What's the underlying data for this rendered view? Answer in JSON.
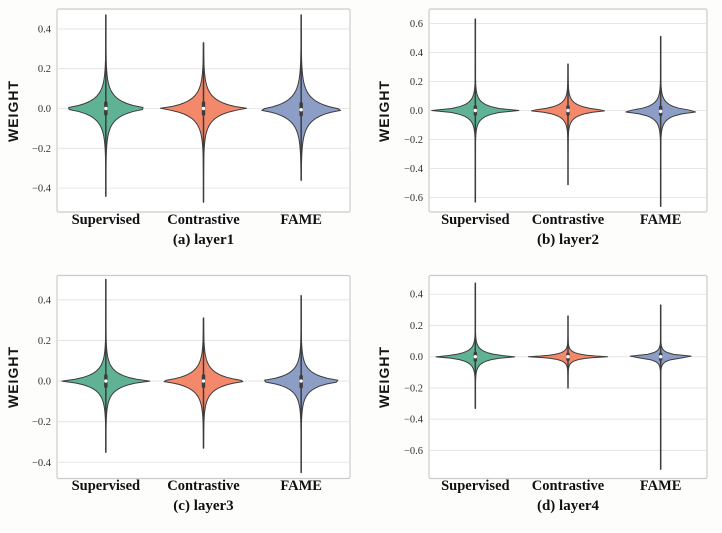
{
  "figure": {
    "ylabel": "WEIGHT",
    "categories": [
      "Supervised",
      "Contrastive",
      "FAME"
    ]
  },
  "style": {
    "background": "#fdfdfc",
    "panel_background": "#ffffff",
    "violin_colors": {
      "supervised": "#60b295",
      "contrastive": "#f4886a",
      "fame": "#8c9dc6"
    },
    "outline_color": "#3c3c3c",
    "grid_color": "#e7e7e7",
    "border_color": "#cccccc",
    "tick_text_color": "#303030",
    "label_text_color": "#101010",
    "median_dot_color": "#fbfbfb"
  },
  "chart_data": [
    {
      "type": "violin",
      "caption": "(a) layer1",
      "ylabel": "WEIGHT",
      "categories": [
        "Supervised",
        "Contrastive",
        "FAME"
      ],
      "ylim": [
        -0.52,
        0.5
      ],
      "yticks": [
        0.4,
        0.2,
        0.0,
        -0.2,
        -0.4
      ],
      "ytick_labels": [
        "0.4",
        "0.2",
        "0.0",
        "−0.2",
        "−0.4"
      ],
      "grid": true,
      "legend": "none",
      "series": [
        {
          "name": "Supervised",
          "color": "#60b295",
          "min": -0.44,
          "max": 0.47,
          "median": 0.0,
          "q1": -0.028,
          "q3": 0.028,
          "bandwidth": 0.034
        },
        {
          "name": "Contrastive",
          "color": "#f4886a",
          "min": -0.47,
          "max": 0.33,
          "median": 0.0,
          "q1": -0.028,
          "q3": 0.028,
          "bandwidth": 0.034
        },
        {
          "name": "FAME",
          "color": "#8c9dc6",
          "min": -0.36,
          "max": 0.47,
          "median": -0.006,
          "q1": -0.032,
          "q3": 0.024,
          "bandwidth": 0.037
        }
      ]
    },
    {
      "type": "violin",
      "caption": "(b) layer2",
      "ylabel": "WEIGHT",
      "categories": [
        "Supervised",
        "Contrastive",
        "FAME"
      ],
      "ylim": [
        -0.7,
        0.7
      ],
      "yticks": [
        0.6,
        0.4,
        0.2,
        0.0,
        -0.2,
        -0.4,
        -0.6
      ],
      "ytick_labels": [
        "0.6",
        "0.4",
        "0.2",
        "0.0",
        "−0.2",
        "−0.4",
        "−0.6"
      ],
      "grid": true,
      "legend": "none",
      "series": [
        {
          "name": "Supervised",
          "color": "#60b295",
          "min": -0.63,
          "max": 0.63,
          "median": 0.0,
          "q1": -0.025,
          "q3": 0.025,
          "bandwidth": 0.026
        },
        {
          "name": "Contrastive",
          "color": "#f4886a",
          "min": -0.51,
          "max": 0.32,
          "median": 0.0,
          "q1": -0.025,
          "q3": 0.025,
          "bandwidth": 0.024
        },
        {
          "name": "FAME",
          "color": "#8c9dc6",
          "min": -0.66,
          "max": 0.51,
          "median": -0.006,
          "q1": -0.028,
          "q3": 0.022,
          "bandwidth": 0.026
        }
      ]
    },
    {
      "type": "violin",
      "caption": "(c) layer3",
      "ylabel": "WEIGHT",
      "categories": [
        "Supervised",
        "Contrastive",
        "FAME"
      ],
      "ylim": [
        -0.48,
        0.52
      ],
      "yticks": [
        0.4,
        0.2,
        0.0,
        -0.2,
        -0.4
      ],
      "ytick_labels": [
        "0.4",
        "0.2",
        "0.0",
        "−0.2",
        "−0.4"
      ],
      "grid": true,
      "legend": "none",
      "series": [
        {
          "name": "Supervised",
          "color": "#60b295",
          "min": -0.35,
          "max": 0.5,
          "median": 0.0,
          "q1": -0.026,
          "q3": 0.026,
          "bandwidth": 0.028
        },
        {
          "name": "Contrastive",
          "color": "#f4886a",
          "min": -0.33,
          "max": 0.31,
          "median": 0.0,
          "q1": -0.026,
          "q3": 0.026,
          "bandwidth": 0.03
        },
        {
          "name": "FAME",
          "color": "#8c9dc6",
          "min": -0.45,
          "max": 0.42,
          "median": 0.0,
          "q1": -0.028,
          "q3": 0.022,
          "bandwidth": 0.028
        }
      ]
    },
    {
      "type": "violin",
      "caption": "(d) layer4",
      "ylabel": "WEIGHT",
      "categories": [
        "Supervised",
        "Contrastive",
        "FAME"
      ],
      "ylim": [
        -0.78,
        0.52
      ],
      "yticks": [
        0.4,
        0.2,
        0.0,
        -0.2,
        -0.4,
        -0.6
      ],
      "ytick_labels": [
        "0.4",
        "0.2",
        "0.0",
        "−0.2",
        "−0.4",
        "−0.6"
      ],
      "grid": true,
      "legend": "none",
      "series": [
        {
          "name": "Supervised",
          "color": "#60b295",
          "min": -0.33,
          "max": 0.47,
          "median": 0.0,
          "q1": -0.022,
          "q3": 0.022,
          "bandwidth": 0.019
        },
        {
          "name": "Contrastive",
          "color": "#f4886a",
          "min": -0.2,
          "max": 0.26,
          "median": 0.0,
          "q1": -0.016,
          "q3": 0.016,
          "bandwidth": 0.012
        },
        {
          "name": "FAME",
          "color": "#8c9dc6",
          "min": -0.72,
          "max": 0.33,
          "median": 0.0,
          "q1": -0.016,
          "q3": 0.016,
          "bandwidth": 0.012
        }
      ]
    }
  ]
}
